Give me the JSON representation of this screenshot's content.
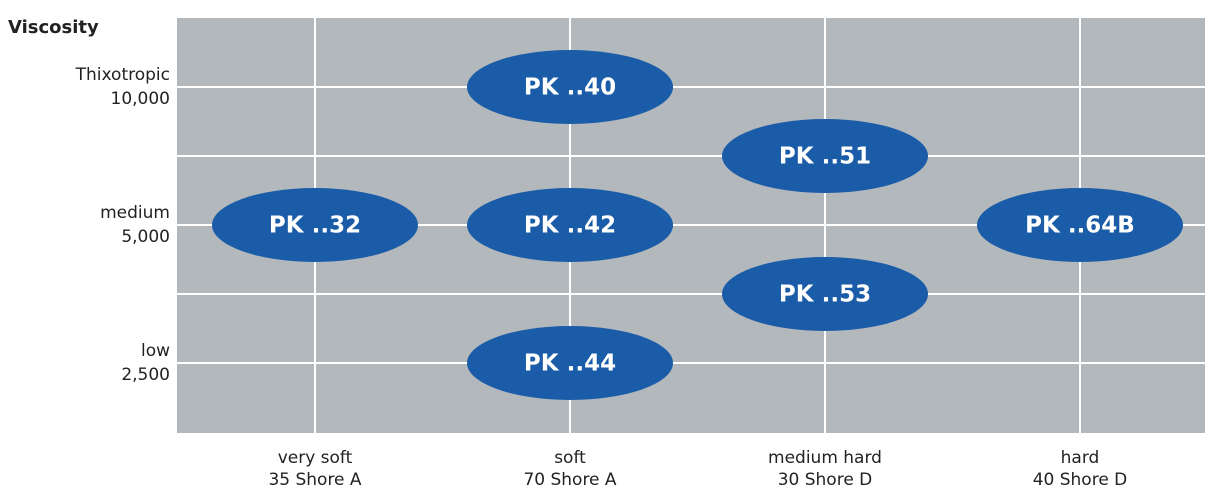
{
  "y_axis_title": "Viscosity",
  "rows": [
    {
      "name": "Thixotropic",
      "value": "10,000"
    },
    {
      "name": "medium",
      "value": "5,000"
    },
    {
      "name": "low",
      "value": "2,500"
    }
  ],
  "columns": [
    {
      "name": "very soft",
      "value": "35 Shore A"
    },
    {
      "name": "soft",
      "value": "70 Shore A"
    },
    {
      "name": "medium hard",
      "value": "30 Shore D"
    },
    {
      "name": "hard",
      "value": "40 Shore D"
    }
  ],
  "nodes": [
    {
      "label": "PK ..40"
    },
    {
      "label": "PK ..51"
    },
    {
      "label": "PK ..32"
    },
    {
      "label": "PK ..42"
    },
    {
      "label": "PK ..64B"
    },
    {
      "label": "PK ..53"
    },
    {
      "label": "PK ..44"
    }
  ]
}
